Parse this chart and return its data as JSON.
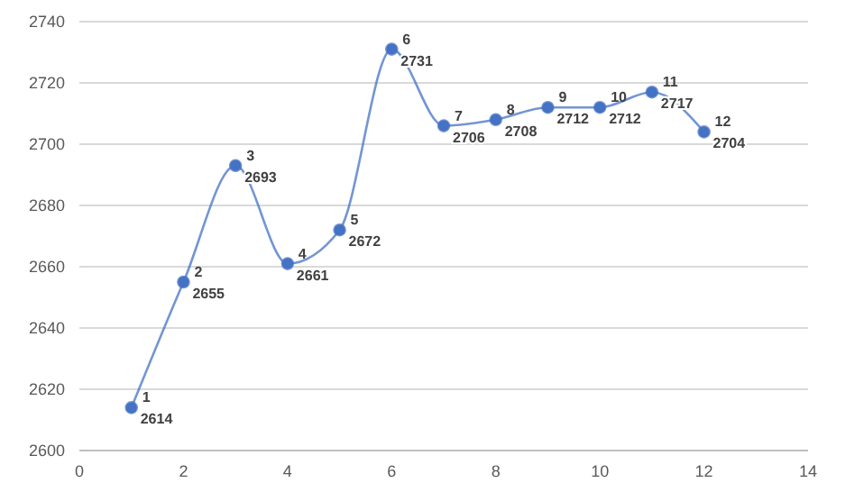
{
  "chart_data": {
    "type": "line",
    "x": [
      1,
      2,
      3,
      4,
      5,
      6,
      7,
      8,
      9,
      10,
      11,
      12
    ],
    "series": [
      {
        "color": "#4472c4",
        "values": [
          2614,
          2655,
          2693,
          2661,
          2672,
          2731,
          2706,
          2708,
          2712,
          2712,
          2717,
          2704
        ]
      }
    ],
    "xlim": [
      0,
      14
    ],
    "xticks": [
      0,
      2,
      4,
      6,
      8,
      10,
      12,
      14
    ],
    "ylim": [
      2600,
      2740
    ],
    "yticks": [
      2600,
      2620,
      2640,
      2660,
      2680,
      2700,
      2720,
      2740
    ],
    "grid": "y",
    "marker": "circle",
    "line_style": "solid",
    "data_labels": true,
    "annotations": [
      {
        "text": "1",
        "x": 1,
        "y": 2614
      },
      {
        "text": "2",
        "x": 2,
        "y": 2655
      },
      {
        "text": "3",
        "x": 3,
        "y": 2693
      },
      {
        "text": "4",
        "x": 4,
        "y": 2661
      },
      {
        "text": "5",
        "x": 5,
        "y": 2672
      },
      {
        "text": "6",
        "x": 6,
        "y": 2731
      },
      {
        "text": "7",
        "x": 7,
        "y": 2706
      },
      {
        "text": "8",
        "x": 8,
        "y": 2708
      },
      {
        "text": "9",
        "x": 9,
        "y": 2712
      },
      {
        "text": "10",
        "x": 10,
        "y": 2712
      },
      {
        "text": "11",
        "x": 11,
        "y": 2717
      },
      {
        "text": "12",
        "x": 12,
        "y": 2704
      }
    ]
  }
}
